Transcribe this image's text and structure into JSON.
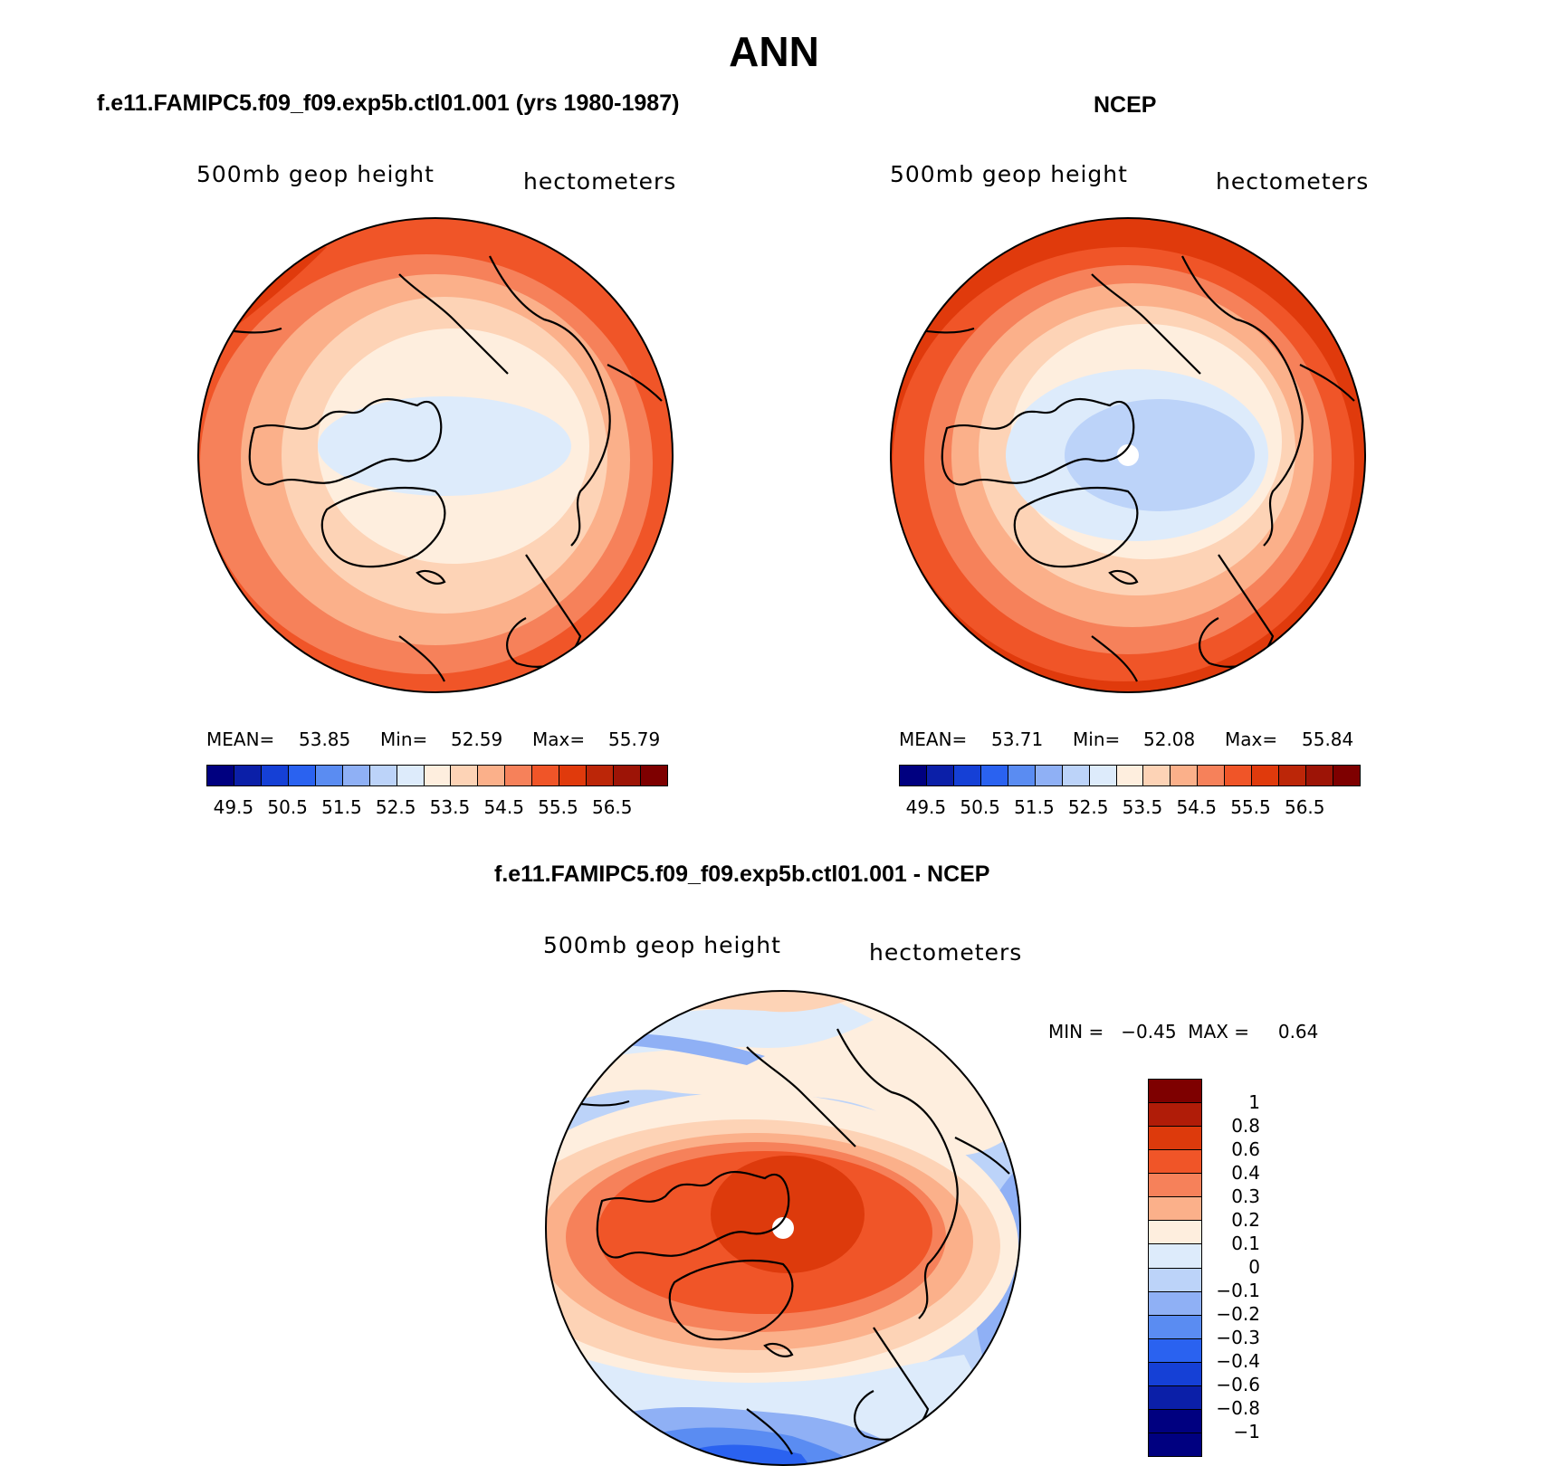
{
  "title": "ANN",
  "panels": {
    "left": {
      "title": "f.e11.FAMIPC5.f09_f09.exp5b.ctl01.001 (yrs 1980-1987)",
      "variable": "500mb  geop  height",
      "units": "hectometers",
      "mean_label": "MEAN=",
      "mean": "53.85",
      "min_label": "Min=",
      "min": "52.59",
      "max_label": "Max=",
      "max": "55.79"
    },
    "right": {
      "title": "NCEP",
      "variable": "500mb  geop  height",
      "units": "hectometers",
      "mean_label": "MEAN=",
      "mean": "53.71",
      "min_label": "Min=",
      "min": "52.08",
      "max_label": "Max=",
      "max": "55.84"
    },
    "bottom": {
      "title": "f.e11.FAMIPC5.f09_f09.exp5b.ctl01.001 - NCEP",
      "variable": "500mb  geop  height",
      "units": "hectometers",
      "minmax": "MIN =   −0.45  MAX =     0.64"
    }
  },
  "colorbar_abs": {
    "colors": [
      "#000080",
      "#0b1fa8",
      "#1540d6",
      "#2a62f0",
      "#5a8cf2",
      "#8fb0f5",
      "#bcd3f9",
      "#ddebfb",
      "#feeede",
      "#fdd3b6",
      "#fbb08a",
      "#f6815a",
      "#f05528",
      "#e03a0c",
      "#bc2608",
      "#9d1406",
      "#7e0000"
    ],
    "ticks": [
      "49.5",
      "50.5",
      "51.5",
      "52.5",
      "53.5",
      "54.5",
      "55.5",
      "56.5"
    ]
  },
  "colorbar_diff": {
    "colors": [
      "#7e0000",
      "#b01c08",
      "#dd3a0c",
      "#f05528",
      "#f6815a",
      "#fbb08a",
      "#feeede",
      "#ddebfb",
      "#bcd3f9",
      "#8fb0f5",
      "#5a8cf2",
      "#2a62f0",
      "#1540d6",
      "#0b1fa8",
      "#000080",
      "#000080"
    ],
    "ticks": [
      "1",
      "0.8",
      "0.6",
      "0.4",
      "0.3",
      "0.2",
      "0.1",
      "0",
      "−0.1",
      "−0.2",
      "−0.3",
      "−0.4",
      "−0.6",
      "−0.8",
      "−1"
    ]
  }
}
